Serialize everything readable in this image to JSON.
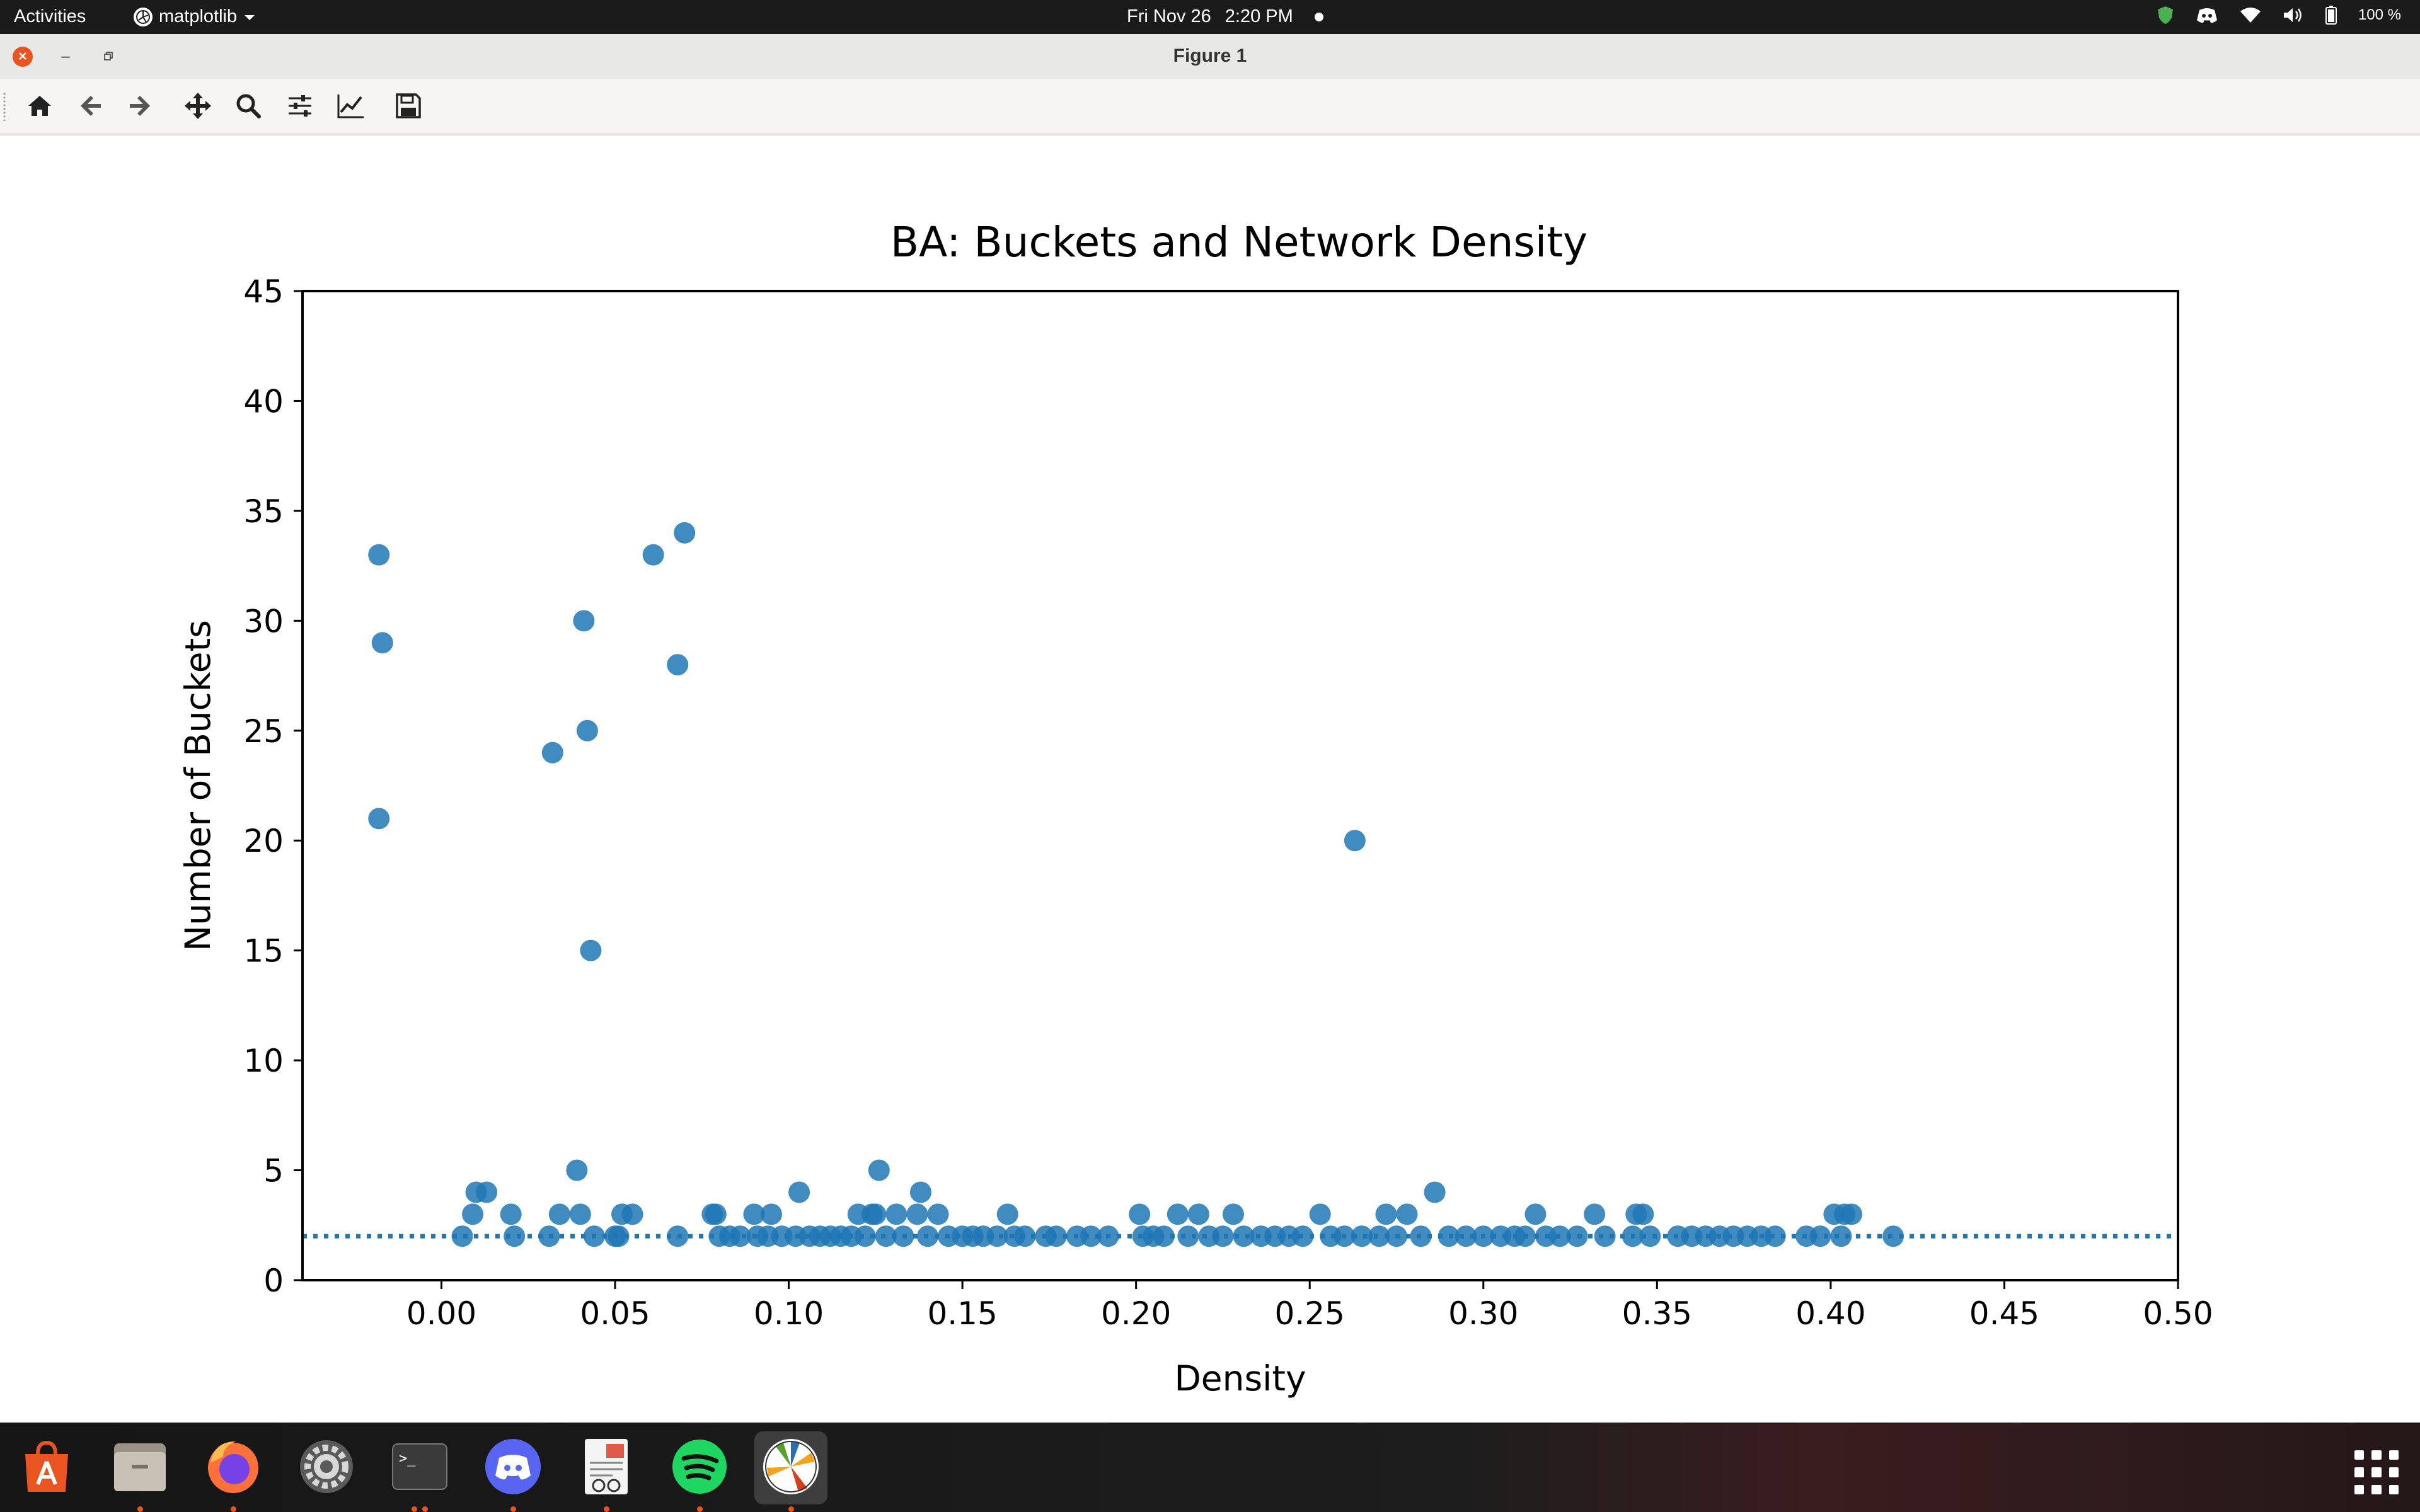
{
  "topbar": {
    "activities": "Activities",
    "app_menu_label": "matplotlib",
    "clock_date": "Fri Nov 26",
    "clock_time": "2:20 PM",
    "battery_percent": "100 %",
    "icons": [
      "shield-icon",
      "discord-tray-icon",
      "wifi-icon",
      "volume-icon",
      "battery-icon"
    ]
  },
  "window": {
    "title": "Figure 1",
    "close_icon": "close-icon",
    "minimize_label": "–",
    "maximize_icon": "restore-icon"
  },
  "toolbar": {
    "buttons": [
      {
        "name": "home-button",
        "icon": "home-icon"
      },
      {
        "name": "back-button",
        "icon": "arrow-left-icon"
      },
      {
        "name": "forward-button",
        "icon": "arrow-right-icon"
      },
      {
        "name": "pan-button",
        "icon": "move-icon"
      },
      {
        "name": "zoom-button",
        "icon": "magnifier-icon"
      },
      {
        "name": "configure-subplots-button",
        "icon": "sliders-icon"
      },
      {
        "name": "edit-axis-button",
        "icon": "line-chart-icon"
      },
      {
        "name": "save-button",
        "icon": "floppy-disk-icon"
      }
    ]
  },
  "chart_data": {
    "type": "scatter",
    "title": "BA: Buckets and Network Density",
    "xlabel": "Density",
    "ylabel": "Number of Buckets",
    "xlim": [
      -0.04,
      0.5
    ],
    "ylim": [
      0,
      45
    ],
    "xticks": [
      "0.00",
      "0.05",
      "0.10",
      "0.15",
      "0.20",
      "0.25",
      "0.30",
      "0.35",
      "0.40",
      "0.45",
      "0.50"
    ],
    "yticks": [
      "0",
      "5",
      "10",
      "15",
      "20",
      "25",
      "30",
      "35",
      "40",
      "45"
    ],
    "grid": false,
    "marker_color": "#1f77b4",
    "reference_line": {
      "y": 2,
      "style": "dotted",
      "color": "#1f77b4"
    },
    "points": [
      [
        -0.018,
        33
      ],
      [
        -0.017,
        29
      ],
      [
        -0.018,
        21
      ],
      [
        0.041,
        30
      ],
      [
        0.042,
        25
      ],
      [
        0.032,
        24
      ],
      [
        0.043,
        15
      ],
      [
        0.061,
        33
      ],
      [
        0.07,
        34
      ],
      [
        0.068,
        28
      ],
      [
        0.263,
        20
      ],
      [
        0.006,
        2
      ],
      [
        0.009,
        3
      ],
      [
        0.01,
        4
      ],
      [
        0.013,
        4
      ],
      [
        0.02,
        3
      ],
      [
        0.021,
        2
      ],
      [
        0.031,
        2
      ],
      [
        0.034,
        3
      ],
      [
        0.039,
        5
      ],
      [
        0.04,
        3
      ],
      [
        0.044,
        2
      ],
      [
        0.05,
        2
      ],
      [
        0.051,
        2
      ],
      [
        0.052,
        3
      ],
      [
        0.055,
        3
      ],
      [
        0.068,
        2
      ],
      [
        0.078,
        3
      ],
      [
        0.079,
        3
      ],
      [
        0.08,
        2
      ],
      [
        0.083,
        2
      ],
      [
        0.086,
        2
      ],
      [
        0.09,
        3
      ],
      [
        0.091,
        2
      ],
      [
        0.094,
        2
      ],
      [
        0.095,
        3
      ],
      [
        0.098,
        2
      ],
      [
        0.102,
        2
      ],
      [
        0.103,
        4
      ],
      [
        0.106,
        2
      ],
      [
        0.109,
        2
      ],
      [
        0.112,
        2
      ],
      [
        0.115,
        2
      ],
      [
        0.118,
        2
      ],
      [
        0.12,
        3
      ],
      [
        0.122,
        2
      ],
      [
        0.124,
        3
      ],
      [
        0.125,
        3
      ],
      [
        0.126,
        5
      ],
      [
        0.128,
        2
      ],
      [
        0.131,
        3
      ],
      [
        0.133,
        2
      ],
      [
        0.137,
        3
      ],
      [
        0.138,
        4
      ],
      [
        0.14,
        2
      ],
      [
        0.143,
        3
      ],
      [
        0.146,
        2
      ],
      [
        0.15,
        2
      ],
      [
        0.153,
        2
      ],
      [
        0.156,
        2
      ],
      [
        0.16,
        2
      ],
      [
        0.163,
        3
      ],
      [
        0.165,
        2
      ],
      [
        0.168,
        2
      ],
      [
        0.174,
        2
      ],
      [
        0.177,
        2
      ],
      [
        0.183,
        2
      ],
      [
        0.187,
        2
      ],
      [
        0.192,
        2
      ],
      [
        0.201,
        3
      ],
      [
        0.202,
        2
      ],
      [
        0.205,
        2
      ],
      [
        0.208,
        2
      ],
      [
        0.212,
        3
      ],
      [
        0.215,
        2
      ],
      [
        0.218,
        3
      ],
      [
        0.221,
        2
      ],
      [
        0.225,
        2
      ],
      [
        0.228,
        3
      ],
      [
        0.231,
        2
      ],
      [
        0.236,
        2
      ],
      [
        0.24,
        2
      ],
      [
        0.244,
        2
      ],
      [
        0.248,
        2
      ],
      [
        0.253,
        3
      ],
      [
        0.256,
        2
      ],
      [
        0.26,
        2
      ],
      [
        0.265,
        2
      ],
      [
        0.27,
        2
      ],
      [
        0.272,
        3
      ],
      [
        0.275,
        2
      ],
      [
        0.278,
        3
      ],
      [
        0.282,
        2
      ],
      [
        0.286,
        4
      ],
      [
        0.29,
        2
      ],
      [
        0.295,
        2
      ],
      [
        0.3,
        2
      ],
      [
        0.305,
        2
      ],
      [
        0.309,
        2
      ],
      [
        0.312,
        2
      ],
      [
        0.315,
        3
      ],
      [
        0.318,
        2
      ],
      [
        0.322,
        2
      ],
      [
        0.327,
        2
      ],
      [
        0.332,
        3
      ],
      [
        0.335,
        2
      ],
      [
        0.343,
        2
      ],
      [
        0.344,
        3
      ],
      [
        0.346,
        3
      ],
      [
        0.348,
        2
      ],
      [
        0.356,
        2
      ],
      [
        0.36,
        2
      ],
      [
        0.364,
        2
      ],
      [
        0.368,
        2
      ],
      [
        0.372,
        2
      ],
      [
        0.376,
        2
      ],
      [
        0.38,
        2
      ],
      [
        0.384,
        2
      ],
      [
        0.393,
        2
      ],
      [
        0.397,
        2
      ],
      [
        0.401,
        3
      ],
      [
        0.403,
        2
      ],
      [
        0.404,
        3
      ],
      [
        0.406,
        3
      ],
      [
        0.418,
        2
      ]
    ]
  },
  "dock": {
    "apps": [
      {
        "name": "ubuntu-software-icon",
        "running": 0
      },
      {
        "name": "files-icon",
        "running": 1
      },
      {
        "name": "firefox-icon",
        "running": 1
      },
      {
        "name": "settings-icon",
        "running": 0
      },
      {
        "name": "terminal-icon",
        "running": 2
      },
      {
        "name": "discord-icon",
        "running": 1
      },
      {
        "name": "document-viewer-icon",
        "running": 1
      },
      {
        "name": "spotify-icon",
        "running": 1
      },
      {
        "name": "matplotlib-icon",
        "running": 1
      }
    ],
    "terminal_prompt": ">_"
  }
}
